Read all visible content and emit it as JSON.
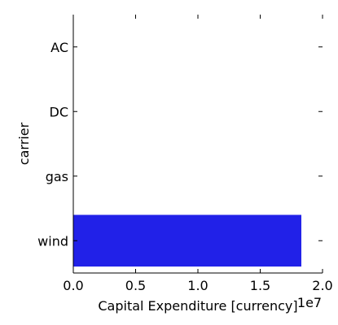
{
  "chart_data": {
    "type": "bar",
    "orientation": "horizontal",
    "categories": [
      "AC",
      "DC",
      "gas",
      "wind"
    ],
    "values": [
      0,
      0,
      0,
      18300000
    ],
    "title": "",
    "xlabel": "Capital Expenditure [currency]",
    "ylabel": "carrier",
    "xlim": [
      0,
      20000000
    ],
    "x_ticks": [
      0,
      5000000,
      10000000,
      15000000,
      20000000
    ],
    "x_tick_labels": [
      "0.0",
      "0.5",
      "1.0",
      "1.5",
      "2.0"
    ],
    "x_offset_label": "1e7",
    "grid": false,
    "legend": "none",
    "bar_color": "#2121e8"
  }
}
